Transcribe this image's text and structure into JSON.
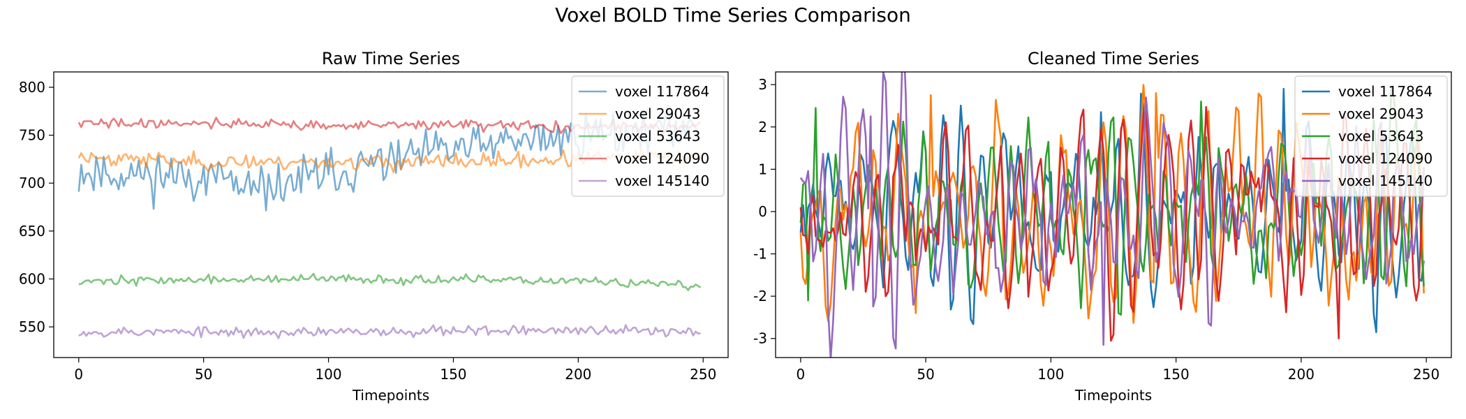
{
  "page_title": "Voxel BOLD Time Series Comparison",
  "chart_data": [
    {
      "type": "line",
      "title": "Raw Time Series",
      "xlabel": "Timepoints",
      "ylabel": "",
      "xlim": [
        -10,
        260
      ],
      "ylim": [
        518,
        816
      ],
      "xticks": [
        0,
        50,
        100,
        150,
        200,
        250
      ],
      "yticks": [
        550,
        600,
        650,
        700,
        750,
        800
      ],
      "legend_position": "top-right",
      "n_points": 250,
      "series_alpha": 0.6,
      "series": [
        {
          "name": "voxel 117864",
          "color": "#1f77b4",
          "trend": [
            [
              0,
              712
            ],
            [
              60,
              705
            ],
            [
              66,
              688
            ],
            [
              100,
              710
            ],
            [
              150,
              735
            ],
            [
              200,
              750
            ],
            [
              249,
              758
            ]
          ],
          "noise": 26,
          "seed": 11
        },
        {
          "name": "voxel 29043",
          "color": "#ff7f0e",
          "trend": [
            [
              0,
              728
            ],
            [
              50,
              722
            ],
            [
              100,
              722
            ],
            [
              150,
              722
            ],
            [
              200,
              725
            ],
            [
              249,
              728
            ]
          ],
          "noise": 9,
          "seed": 23
        },
        {
          "name": "voxel 53643",
          "color": "#2ca02c",
          "trend": [
            [
              0,
              598
            ],
            [
              100,
              600
            ],
            [
              200,
              598
            ],
            [
              249,
              592
            ]
          ],
          "noise": 5,
          "seed": 37
        },
        {
          "name": "voxel 124090",
          "color": "#d62728",
          "trend": [
            [
              0,
              762
            ],
            [
              50,
              763
            ],
            [
              100,
              760
            ],
            [
              150,
              761
            ],
            [
              200,
              758
            ],
            [
              249,
              760
            ]
          ],
          "noise": 6,
          "seed": 41
        },
        {
          "name": "voxel 145140",
          "color": "#9467bd",
          "trend": [
            [
              0,
              545
            ],
            [
              100,
              544
            ],
            [
              150,
              547
            ],
            [
              249,
              545
            ]
          ],
          "noise": 6,
          "seed": 53
        }
      ]
    },
    {
      "type": "line",
      "title": "Cleaned Time Series",
      "xlabel": "Timepoints",
      "ylabel": "",
      "xlim": [
        -10,
        260
      ],
      "ylim": [
        -3.45,
        3.3
      ],
      "xticks": [
        0,
        50,
        100,
        150,
        200,
        250
      ],
      "yticks": [
        -3,
        -2,
        -1,
        0,
        1,
        2,
        3
      ],
      "legend_position": "top-right",
      "n_points": 250,
      "series_alpha": 1.0,
      "series": [
        {
          "name": "voxel 117864",
          "color": "#1f77b4",
          "trend": [
            [
              0,
              0
            ],
            [
              249,
              0
            ]
          ],
          "noise": 1.0,
          "seed": 61,
          "peaks": [
            [
              193,
              2.9
            ],
            [
              120,
              2.35
            ],
            [
              0,
              -0.5
            ]
          ]
        },
        {
          "name": "voxel 29043",
          "color": "#ff7f0e",
          "trend": [
            [
              0,
              0
            ],
            [
              249,
              0
            ]
          ],
          "noise": 1.0,
          "seed": 67,
          "peaks": [
            [
              52,
              2.75
            ],
            [
              142,
              2.8
            ],
            [
              46,
              -2.4
            ]
          ]
        },
        {
          "name": "voxel 53643",
          "color": "#2ca02c",
          "trend": [
            [
              0,
              0
            ],
            [
              249,
              0
            ]
          ],
          "noise": 1.0,
          "seed": 71,
          "peaks": [
            [
              6,
              2.45
            ],
            [
              160,
              2.6
            ],
            [
              3,
              -2.1
            ]
          ]
        },
        {
          "name": "voxel 124090",
          "color": "#d62728",
          "trend": [
            [
              0,
              0
            ],
            [
              249,
              0
            ]
          ],
          "noise": 1.0,
          "seed": 79,
          "peaks": [
            [
              215,
              -3.0
            ],
            [
              0,
              0.1
            ]
          ]
        },
        {
          "name": "voxel 145140",
          "color": "#9467bd",
          "trend": [
            [
              0,
              0
            ],
            [
              249,
              0
            ]
          ],
          "noise": 1.0,
          "seed": 83,
          "peaks": [
            [
              121,
              -3.15
            ],
            [
              28,
              2.25
            ],
            [
              0,
              0.8
            ]
          ]
        }
      ]
    }
  ]
}
